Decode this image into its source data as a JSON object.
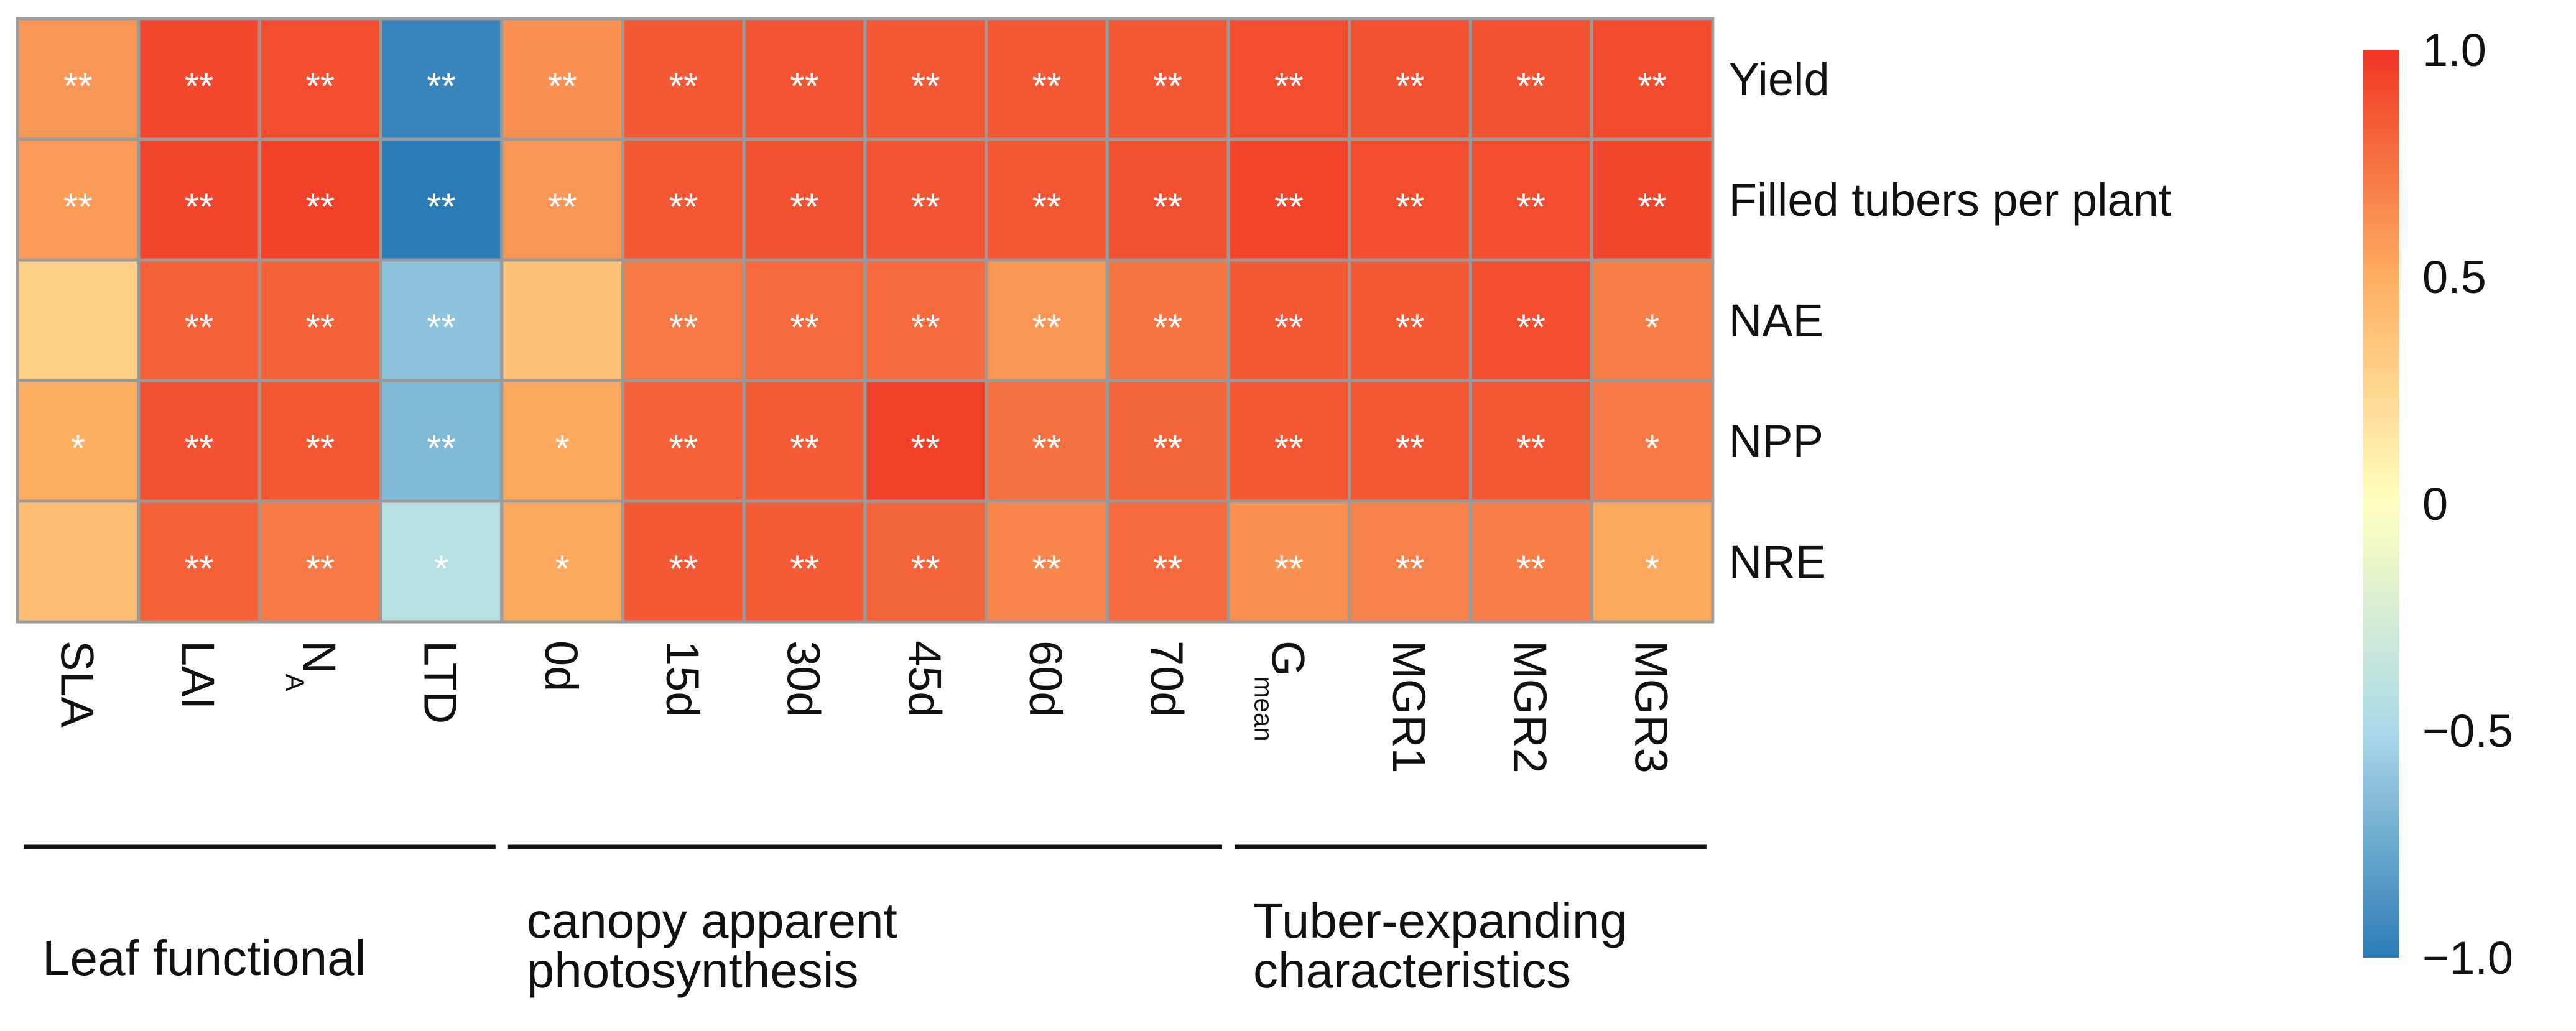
{
  "chart_data": {
    "type": "heatmap",
    "rows": [
      "Yield",
      "Filled tubers per plant",
      "NAE",
      "NPP",
      "NRE"
    ],
    "columns": [
      {
        "main": "SLA",
        "sub": ""
      },
      {
        "main": "LAI",
        "sub": ""
      },
      {
        "main": "N",
        "sub": "A"
      },
      {
        "main": "LTD",
        "sub": ""
      },
      {
        "main": "0d",
        "sub": ""
      },
      {
        "main": "15d",
        "sub": ""
      },
      {
        "main": "30d",
        "sub": ""
      },
      {
        "main": "45d",
        "sub": ""
      },
      {
        "main": "60d",
        "sub": ""
      },
      {
        "main": "70d",
        "sub": ""
      },
      {
        "main": "G",
        "sub": "mean"
      },
      {
        "main": "MGR1",
        "sub": ""
      },
      {
        "main": "MGR2",
        "sub": ""
      },
      {
        "main": "MGR3",
        "sub": ""
      }
    ],
    "values": [
      [
        0.6,
        0.92,
        0.9,
        -0.95,
        0.62,
        0.85,
        0.87,
        0.86,
        0.86,
        0.86,
        0.9,
        0.88,
        0.88,
        0.91
      ],
      [
        0.58,
        0.93,
        0.95,
        -1.0,
        0.6,
        0.86,
        0.88,
        0.87,
        0.86,
        0.89,
        0.94,
        0.9,
        0.9,
        0.93
      ],
      [
        0.3,
        0.82,
        0.82,
        -0.62,
        0.38,
        0.72,
        0.78,
        0.78,
        0.6,
        0.74,
        0.85,
        0.85,
        0.9,
        0.7
      ],
      [
        0.5,
        0.88,
        0.86,
        -0.67,
        0.52,
        0.82,
        0.84,
        0.95,
        0.75,
        0.8,
        0.86,
        0.86,
        0.86,
        0.72
      ],
      [
        0.4,
        0.82,
        0.72,
        -0.42,
        0.52,
        0.85,
        0.84,
        0.8,
        0.66,
        0.78,
        0.62,
        0.68,
        0.7,
        0.52
      ]
    ],
    "significance": [
      [
        "**",
        "**",
        "**",
        "**",
        "**",
        "**",
        "**",
        "**",
        "**",
        "**",
        "**",
        "**",
        "**",
        "**"
      ],
      [
        "**",
        "**",
        "**",
        "**",
        "**",
        "**",
        "**",
        "**",
        "**",
        "**",
        "**",
        "**",
        "**",
        "**"
      ],
      [
        "",
        "**",
        "**",
        "**",
        "",
        "**",
        "**",
        "**",
        "**",
        "**",
        "**",
        "**",
        "**",
        "*"
      ],
      [
        "*",
        "**",
        "**",
        "**",
        "*",
        "**",
        "**",
        "**",
        "**",
        "**",
        "**",
        "**",
        "**",
        "*"
      ],
      [
        "",
        "**",
        "**",
        "*",
        "*",
        "**",
        "**",
        "**",
        "**",
        "**",
        "**",
        "**",
        "**",
        "*"
      ]
    ],
    "scale": {
      "min": -1.0,
      "max": 1.0,
      "ticks": [
        "1.0",
        "0.5",
        "0",
        "−0.5",
        "−1.0"
      ],
      "tick_values": [
        1.0,
        0.5,
        0,
        -0.5,
        -1.0
      ],
      "stops": [
        "#2c7bb6",
        "#abd9e9",
        "#ffffbf",
        "#fdae61",
        "#f03523"
      ]
    },
    "groups": [
      {
        "label_lines": [
          "Leaf functional"
        ],
        "from_col": 0,
        "to_col": 3
      },
      {
        "label_lines": [
          "canopy apparent",
          "photosynthesis"
        ],
        "from_col": 4,
        "to_col": 9
      },
      {
        "label_lines": [
          "Tuber-expanding",
          "characteristics"
        ],
        "from_col": 10,
        "to_col": 13
      }
    ]
  }
}
